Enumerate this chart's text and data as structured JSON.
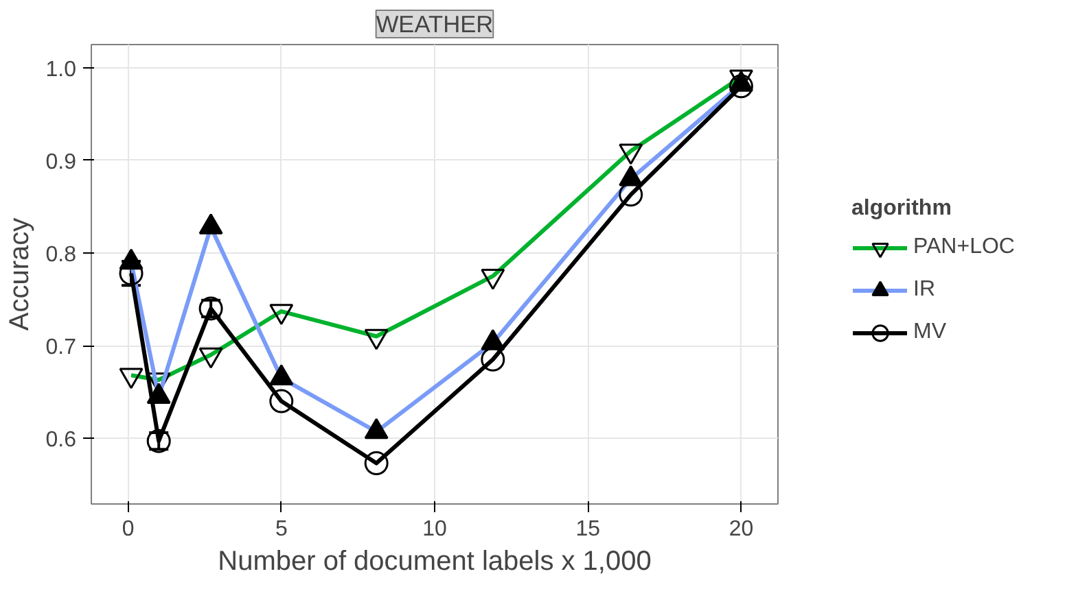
{
  "chart_data": {
    "type": "line",
    "title": "WEATHER",
    "xlabel": "Number of document labels x 1,000",
    "ylabel": "Accuracy",
    "legend_title": "algorithm",
    "x": [
      0.1,
      1.0,
      2.7,
      5.0,
      8.1,
      11.9,
      16.4,
      20.0
    ],
    "series": [
      {
        "name": "PAN+LOC",
        "color": "#00b22d",
        "marker": "triangle",
        "values": [
          0.668,
          0.663,
          0.69,
          0.737,
          0.71,
          0.775,
          0.91,
          0.99
        ]
      },
      {
        "name": "IR",
        "color": "#7a9cf8",
        "marker": "triangle",
        "values": [
          0.79,
          0.645,
          0.828,
          0.665,
          0.607,
          0.703,
          0.88,
          0.982
        ]
      },
      {
        "name": "MV",
        "color": "#000000",
        "marker": "circle",
        "values": [
          0.778,
          0.597,
          0.74,
          0.64,
          0.573,
          0.685,
          0.863,
          0.98
        ],
        "errors": [
          0.013,
          0.009,
          0.009,
          null,
          null,
          null,
          null,
          null
        ]
      }
    ],
    "xlim": [
      -1.2,
      21.2
    ],
    "ylim": [
      0.529,
      1.025
    ],
    "xticks": [
      0,
      5,
      10,
      15,
      20
    ],
    "yticks": [
      0.6,
      0.7,
      0.8,
      0.9,
      {
        "value": 1,
        "label": "1.0"
      }
    ],
    "grid": true,
    "legend": "right",
    "line_style": "solid"
  }
}
